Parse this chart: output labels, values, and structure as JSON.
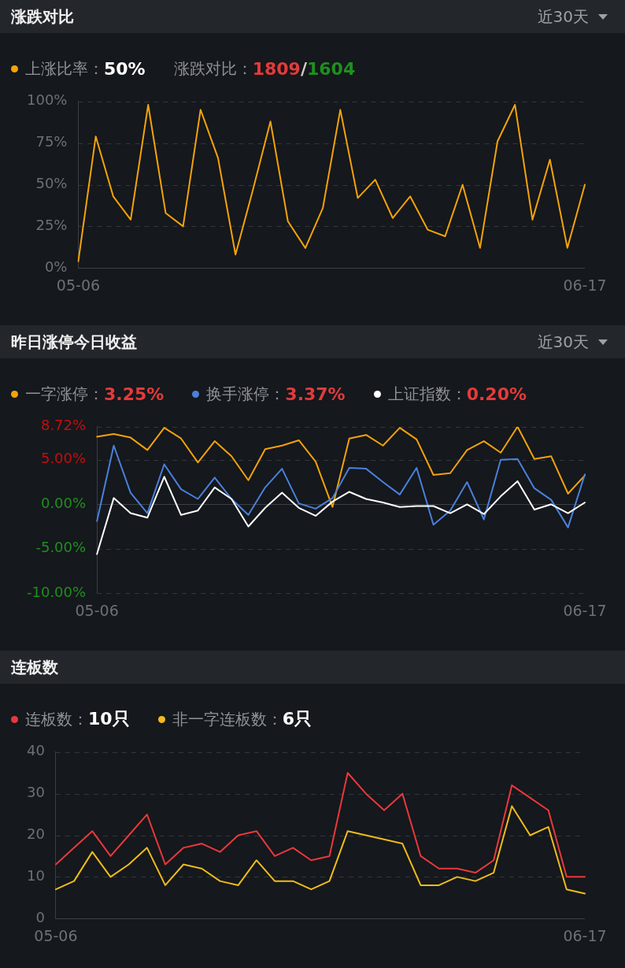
{
  "chart_data": [
    {
      "type": "line",
      "title": "涨跌对比",
      "subtitle": "近30天",
      "annotations": [
        "涨跌对比：1809/1604"
      ],
      "categories": [
        "05-06",
        null,
        null,
        null,
        null,
        null,
        null,
        null,
        null,
        null,
        null,
        null,
        null,
        null,
        null,
        null,
        null,
        null,
        null,
        null,
        null,
        null,
        null,
        null,
        null,
        null,
        null,
        null,
        null,
        "06-17"
      ],
      "series": [
        {
          "name": "上涨比率：50%",
          "color": "#f5a30a",
          "values": [
            4,
            79,
            43,
            29,
            98,
            33,
            25,
            95,
            66,
            8,
            47,
            88,
            28,
            12,
            36,
            95,
            42,
            53,
            30,
            43,
            23,
            19,
            50,
            12,
            76,
            98,
            29,
            65,
            12,
            50
          ]
        }
      ],
      "ylim": [
        0,
        100
      ],
      "yticks": [
        {
          "value": 0,
          "label": "0%"
        },
        {
          "value": 25,
          "label": "25%"
        },
        {
          "value": 50,
          "label": "50%"
        },
        {
          "value": 75,
          "label": "75%"
        },
        {
          "value": 100,
          "label": "100%"
        }
      ],
      "grid": "y",
      "legend": "top left",
      "marker": "none"
    },
    {
      "type": "line",
      "title": "昨日涨停今日收益",
      "subtitle": "近30天",
      "categories": [
        "05-06",
        null,
        null,
        null,
        null,
        null,
        null,
        null,
        null,
        null,
        null,
        null,
        null,
        null,
        null,
        null,
        null,
        null,
        null,
        null,
        null,
        null,
        null,
        null,
        null,
        null,
        null,
        null,
        null,
        "06-17"
      ],
      "series": [
        {
          "name": "一字涨停：3.25%",
          "color": "#f2a20c",
          "values": [
            7.6,
            7.9,
            7.5,
            6.1,
            8.6,
            7.4,
            4.7,
            7.1,
            5.4,
            2.7,
            6.2,
            6.6,
            7.2,
            4.8,
            -0.3,
            7.4,
            7.8,
            6.6,
            8.6,
            7.3,
            3.3,
            3.5,
            6.1,
            7.1,
            5.8,
            8.72,
            5.1,
            5.4,
            1.2,
            3.25
          ]
        },
        {
          "name": "换手涨停：3.37%",
          "color": "#4a80dc",
          "values": [
            -1.9,
            6.6,
            1.3,
            -1.0,
            4.5,
            1.7,
            0.6,
            3.0,
            0.6,
            -1.2,
            1.9,
            4.0,
            0.1,
            -0.5,
            0.7,
            4.1,
            4.0,
            2.5,
            1.1,
            4.1,
            -2.3,
            -0.7,
            2.5,
            -1.7,
            5.0,
            5.1,
            1.8,
            0.5,
            -2.6,
            3.37
          ]
        },
        {
          "name": "上证指数：0.20%",
          "color": "#ffffff",
          "values": [
            -5.6,
            0.7,
            -1.0,
            -1.5,
            3.1,
            -1.2,
            -0.7,
            1.9,
            0.6,
            -2.5,
            -0.4,
            1.3,
            -0.4,
            -1.3,
            0.3,
            1.4,
            0.6,
            0.2,
            -0.3,
            -0.2,
            -0.2,
            -1.0,
            0.0,
            -1.1,
            0.9,
            2.6,
            -0.6,
            0.0,
            -1.0,
            0.2
          ]
        }
      ],
      "ylim": [
        -10,
        8.72
      ],
      "yticks": [
        {
          "value": -10,
          "label": "-10.00%"
        },
        {
          "value": -5,
          "label": "-5.00%"
        },
        {
          "value": 0,
          "label": "0.00%"
        },
        {
          "value": 5,
          "label": "5.00%"
        },
        {
          "value": 8.72,
          "label": "8.72%"
        }
      ],
      "grid": "y",
      "legend": "top left",
      "marker": "none"
    },
    {
      "type": "line",
      "title": "连板数",
      "categories": [
        "05-06",
        null,
        null,
        null,
        null,
        null,
        null,
        null,
        null,
        null,
        null,
        null,
        null,
        null,
        null,
        null,
        null,
        null,
        null,
        null,
        null,
        null,
        null,
        null,
        null,
        null,
        null,
        null,
        null,
        "06-17"
      ],
      "series": [
        {
          "name": "连板数：10只",
          "color": "#e8383d",
          "values": [
            13,
            17,
            21,
            15,
            20,
            25,
            13,
            17,
            18,
            16,
            20,
            21,
            15,
            17,
            14,
            15,
            35,
            30,
            26,
            30,
            15,
            12,
            12,
            11,
            14,
            32,
            29,
            26,
            10,
            10
          ]
        },
        {
          "name": "非一字连板数：6只",
          "color": "#f0bc1a",
          "values": [
            7,
            9,
            16,
            10,
            13,
            17,
            8,
            13,
            12,
            9,
            8,
            14,
            9,
            9,
            7,
            9,
            21,
            20,
            19,
            18,
            8,
            8,
            10,
            9,
            11,
            27,
            20,
            22,
            7,
            6
          ]
        }
      ],
      "ylim": [
        0,
        40
      ],
      "yticks": [
        0,
        10,
        20,
        30,
        40
      ],
      "grid": "y",
      "legend": "top left",
      "marker": "none"
    }
  ]
}
